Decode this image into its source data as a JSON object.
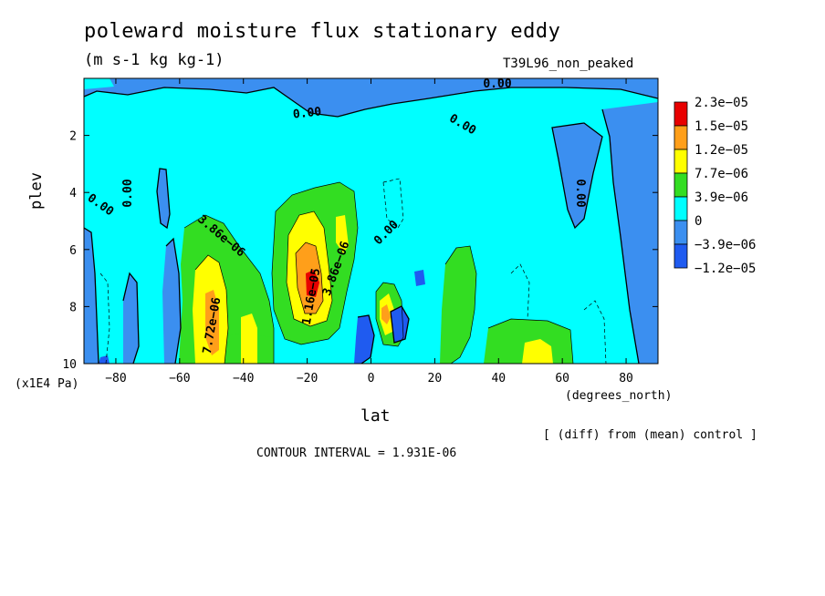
{
  "title": "poleward moisture flux stationary eddy",
  "subtitle": "(m s-1 kg kg-1)",
  "run_id": "T39L96_non_peaked",
  "footnote": "[ (diff) from (mean) control ]",
  "contour_interval": "CONTOUR INTERVAL = 1.931E-06",
  "colors": {
    "lev_neg2": "#1f5bf0",
    "lev_neg1": "#3b8ff0",
    "lev_0": "#00ffff",
    "lev_1": "#33dd22",
    "lev_2": "#ffff00",
    "lev_3": "#ff9f1a",
    "lev_4": "#e80000"
  },
  "chart_data": {
    "type": "heatmap",
    "title": "poleward moisture flux stationary eddy",
    "xlabel": "lat",
    "ylabel": "plev",
    "x_unit": "(degrees_north)",
    "y_unit": "(x1E4 Pa)",
    "xlim": [
      -90,
      90
    ],
    "ylim": [
      10,
      0
    ],
    "xticks": [
      -80,
      -60,
      -40,
      -20,
      0,
      20,
      40,
      60,
      80
    ],
    "xtick_labels": [
      "−80",
      "−60",
      "−40",
      "−20",
      "0",
      "20",
      "40",
      "60",
      "80"
    ],
    "yticks": [
      2,
      4,
      6,
      8,
      10
    ],
    "ytick_labels": [
      "2",
      "4",
      "6",
      "8",
      "10"
    ],
    "colorbar": {
      "labels": [
        "2.3e−05",
        "1.5e−05",
        "1.2e−05",
        "7.7e−06",
        "3.9e−06",
        "0",
        "−3.9e−06",
        "−1.2e−05"
      ],
      "colors": [
        "#e80000",
        "#ff9f1a",
        "#ffff00",
        "#33dd22",
        "#00ffff",
        "#3b8ff0",
        "#1f5bf0"
      ]
    },
    "contour_labels": [
      "0.00",
      "0.00",
      "0.00",
      "0.00",
      "0.00",
      "0.00",
      "0.00",
      "3.86e−06",
      "7.72e−06",
      "1.16e−05",
      "3.86e−06"
    ],
    "features": [
      {
        "lat": -47,
        "plev": 8.2,
        "value": 1.3e-05
      },
      {
        "lat": -18,
        "plev": 7.1,
        "value": 2.3e-05
      },
      {
        "lat": -13,
        "plev": 5.2,
        "value": 8.5e-06
      },
      {
        "lat": 7,
        "plev": 8.3,
        "value": 1.3e-05
      },
      {
        "lat": 51,
        "plev": 9.6,
        "value": 1e-05
      },
      {
        "lat": -60,
        "plev": 4.5,
        "value": -4e-06
      },
      {
        "lat": -8,
        "plev": 9.3,
        "value": -8e-06
      },
      {
        "lat": 15,
        "plev": 6.8,
        "value": -6e-06
      }
    ]
  }
}
